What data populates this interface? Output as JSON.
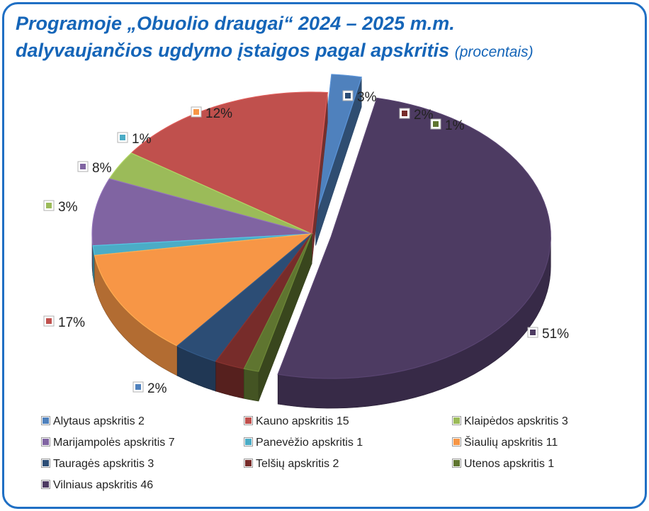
{
  "title": {
    "line1": "Programoje „Obuolio draugai“  2024 – 2025 m.m.",
    "line2": "dalyvaujančios  ugdymo įstaigos pagal apskritis",
    "unit": "(procentais)"
  },
  "chart_data": {
    "type": "pie",
    "title": "Programoje „Obuolio draugai“  2024 – 2025 m.m. dalyvaujančios  ugdymo įstaigos pagal apskritis (procentais)",
    "three_d": true,
    "legend_position": "bottom",
    "slices": [
      {
        "name": "Alytaus apskritis  2",
        "value": 2,
        "label": "2%",
        "color": "#4f81bd"
      },
      {
        "name": "Kauno apskritis 15",
        "value": 15,
        "label": "17%",
        "color": "#c0504d"
      },
      {
        "name": "Klaipėdos apskritis  3",
        "value": 3,
        "label": "3%",
        "color": "#9bbb59"
      },
      {
        "name": "Marijampolės apskritis 7",
        "value": 7,
        "label": "8%",
        "color": "#8064a2"
      },
      {
        "name": "Panevėžio apskritis 1",
        "value": 1,
        "label": "1%",
        "color": "#4bacc6"
      },
      {
        "name": "Šiaulių apskritis 11",
        "value": 11,
        "label": "12%",
        "color": "#f79646"
      },
      {
        "name": "Tauragės apskritis  3",
        "value": 3,
        "label": "3%",
        "color": "#2c4d75"
      },
      {
        "name": "Telšių apskritis  2",
        "value": 2,
        "label": "2%",
        "color": "#772c2a"
      },
      {
        "name": "Utenos apskritis 1",
        "value": 1,
        "label": "1%",
        "color": "#5f7530"
      },
      {
        "name": "Vilniaus apskritis 46",
        "value": 46,
        "label": "51%",
        "color": "#4d3b62"
      }
    ]
  }
}
